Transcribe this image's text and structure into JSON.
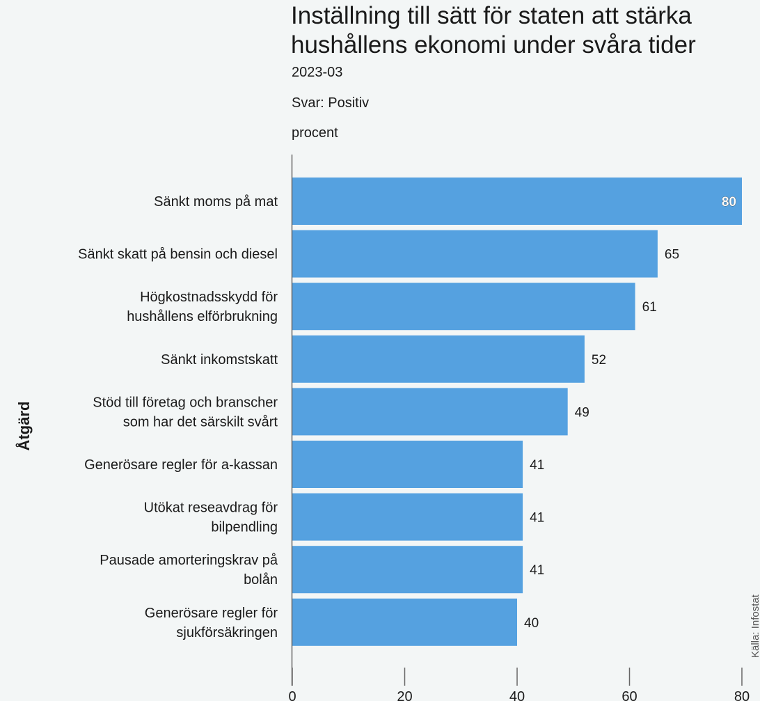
{
  "chart_data": {
    "type": "bar",
    "orientation": "horizontal",
    "title": "Inställning till sätt för staten att stärka hushållens ekonomi under svåra tider",
    "date": "2023-03",
    "answer_label": "Svar: Positiv",
    "unit": "procent",
    "ylabel": "Åtgärd",
    "source": "Källa: Infostat",
    "categories": [
      [
        "Sänkt moms på mat"
      ],
      [
        "Sänkt skatt på bensin och diesel"
      ],
      [
        "Högkostnadsskydd för",
        "hushållens elförbrukning"
      ],
      [
        "Sänkt inkomstskatt"
      ],
      [
        "Stöd till företag och branscher",
        "som har det särskilt svårt"
      ],
      [
        "Generösare regler för a-kassan"
      ],
      [
        "Utökat reseavdrag för",
        "bilpendling"
      ],
      [
        "Pausade amorteringskrav på",
        "bolån"
      ],
      [
        "Generösare regler för",
        "sjukförsäkringen"
      ]
    ],
    "values": [
      80,
      65,
      61,
      52,
      49,
      41,
      41,
      41,
      40
    ],
    "xlim": [
      0,
      80
    ],
    "xticks": [
      0,
      20,
      40,
      60,
      80
    ],
    "bar_color": "#55a1e0",
    "grid": false
  }
}
